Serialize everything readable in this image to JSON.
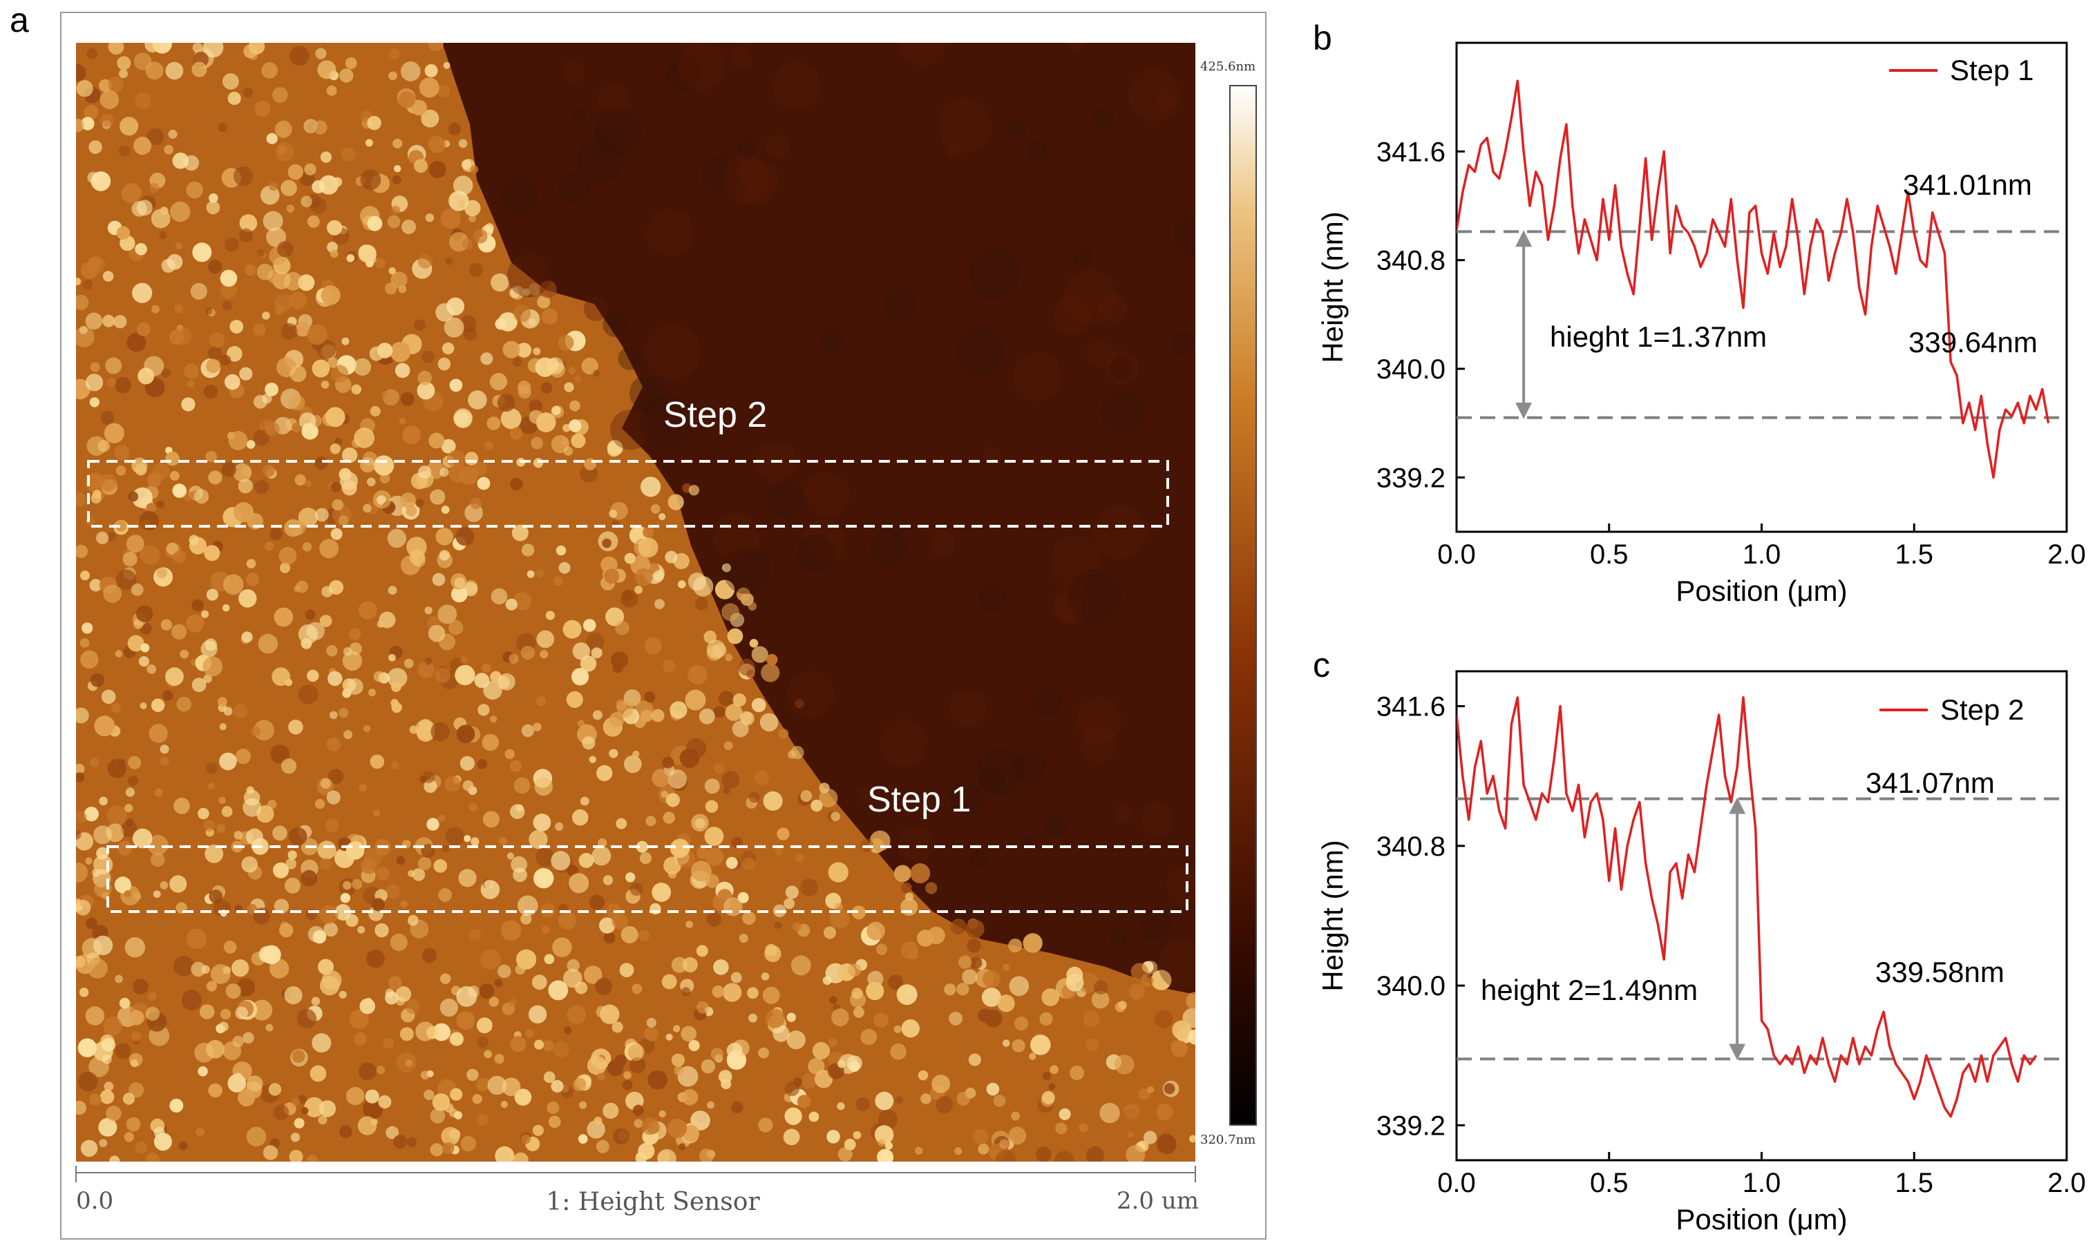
{
  "panels": {
    "a": {
      "label": "a",
      "colorbar": {
        "max_label": "425.6nm",
        "min_label": "320.7nm"
      },
      "scale": {
        "start": "0.0",
        "end": "2.0 um",
        "channel": "1:  Height Sensor"
      },
      "annotations": {
        "step2": "Step 2",
        "step1": "Step 1"
      }
    },
    "b": {
      "label": "b"
    },
    "c": {
      "label": "c"
    }
  },
  "colors": {
    "line": "#e02020",
    "dashed": "#808080",
    "arrow": "#8c8c8c",
    "afm_dark": "#3a0c00",
    "afm_bright": "#fff4d6"
  },
  "chart_data": [
    {
      "id": "b",
      "type": "line",
      "xlabel": "Position (μm)",
      "ylabel": "Height (nm)",
      "xlim": [
        0,
        2.0
      ],
      "ylim": [
        338.8,
        342.4
      ],
      "xticks": [
        "0.0",
        "0.5",
        "1.0",
        "1.5",
        "2.0"
      ],
      "yticks": [
        "339.2",
        "340.0",
        "340.8",
        "341.6"
      ],
      "legend": "Step 1",
      "legend_position": "top-right",
      "reference_lines": [
        341.01,
        339.64
      ],
      "annotations": {
        "upper": "341.01nm",
        "lower": "339.64nm",
        "step": "hieght 1=1.37nm"
      },
      "series": [
        {
          "name": "Step 1",
          "x": [
            0.0,
            0.02,
            0.04,
            0.06,
            0.08,
            0.1,
            0.12,
            0.14,
            0.16,
            0.18,
            0.2,
            0.22,
            0.24,
            0.26,
            0.28,
            0.3,
            0.32,
            0.34,
            0.36,
            0.38,
            0.4,
            0.42,
            0.44,
            0.46,
            0.48,
            0.5,
            0.52,
            0.54,
            0.56,
            0.58,
            0.6,
            0.62,
            0.64,
            0.66,
            0.68,
            0.7,
            0.72,
            0.74,
            0.76,
            0.78,
            0.8,
            0.82,
            0.84,
            0.86,
            0.88,
            0.9,
            0.92,
            0.94,
            0.96,
            0.98,
            1.0,
            1.02,
            1.04,
            1.06,
            1.08,
            1.1,
            1.12,
            1.14,
            1.16,
            1.18,
            1.2,
            1.22,
            1.24,
            1.26,
            1.28,
            1.3,
            1.32,
            1.34,
            1.36,
            1.38,
            1.4,
            1.42,
            1.44,
            1.46,
            1.48,
            1.5,
            1.52,
            1.54,
            1.56,
            1.58,
            1.6,
            1.62,
            1.64,
            1.66,
            1.68,
            1.7,
            1.72,
            1.74,
            1.76,
            1.78,
            1.8,
            1.82,
            1.84,
            1.86,
            1.88,
            1.9,
            1.92,
            1.94
          ],
          "y": [
            341.02,
            341.3,
            341.5,
            341.45,
            341.65,
            341.7,
            341.45,
            341.4,
            341.6,
            341.85,
            342.12,
            341.6,
            341.2,
            341.45,
            341.35,
            340.95,
            341.2,
            341.55,
            341.8,
            341.2,
            340.85,
            341.1,
            340.95,
            340.8,
            341.25,
            340.95,
            341.35,
            340.9,
            340.7,
            340.55,
            341.05,
            341.55,
            340.95,
            341.3,
            341.6,
            340.85,
            341.2,
            341.05,
            341.0,
            340.9,
            340.75,
            340.85,
            341.1,
            341.0,
            340.9,
            341.25,
            340.8,
            340.45,
            341.15,
            341.2,
            340.85,
            340.7,
            341.0,
            340.75,
            340.9,
            341.25,
            340.95,
            340.55,
            340.9,
            341.1,
            341.0,
            340.65,
            340.85,
            341.0,
            341.25,
            341.0,
            340.6,
            340.4,
            340.9,
            341.2,
            341.05,
            340.9,
            340.7,
            341.0,
            341.3,
            341.0,
            340.8,
            340.75,
            341.15,
            341.0,
            340.85,
            340.05,
            339.95,
            339.6,
            339.75,
            339.55,
            339.8,
            339.45,
            339.2,
            339.55,
            339.7,
            339.65,
            339.75,
            339.6,
            339.8,
            339.7,
            339.85,
            339.6
          ]
        }
      ]
    },
    {
      "id": "c",
      "type": "line",
      "xlabel": "Position (μm)",
      "ylabel": "Height (nm)",
      "xlim": [
        0,
        2.0
      ],
      "ylim": [
        339.0,
        341.8
      ],
      "xticks": [
        "0.0",
        "0.5",
        "1.0",
        "1.5",
        "2.0"
      ],
      "yticks": [
        "339.2",
        "340.0",
        "340.8",
        "341.6"
      ],
      "legend": "Step 2",
      "legend_position": "top-right",
      "reference_lines": [
        341.07,
        339.58
      ],
      "annotations": {
        "upper": "341.07nm",
        "lower": "339.58nm",
        "step": "height 2=1.49nm"
      },
      "series": [
        {
          "name": "Step 2",
          "x": [
            0.0,
            0.02,
            0.04,
            0.06,
            0.08,
            0.1,
            0.12,
            0.14,
            0.16,
            0.18,
            0.2,
            0.22,
            0.24,
            0.26,
            0.28,
            0.3,
            0.32,
            0.34,
            0.36,
            0.38,
            0.4,
            0.42,
            0.44,
            0.46,
            0.48,
            0.5,
            0.52,
            0.54,
            0.56,
            0.58,
            0.6,
            0.62,
            0.64,
            0.66,
            0.68,
            0.7,
            0.72,
            0.74,
            0.76,
            0.78,
            0.8,
            0.82,
            0.84,
            0.86,
            0.88,
            0.9,
            0.92,
            0.94,
            0.96,
            0.98,
            1.0,
            1.02,
            1.04,
            1.06,
            1.08,
            1.1,
            1.12,
            1.14,
            1.16,
            1.18,
            1.2,
            1.22,
            1.24,
            1.26,
            1.28,
            1.3,
            1.32,
            1.34,
            1.36,
            1.38,
            1.4,
            1.42,
            1.44,
            1.46,
            1.48,
            1.5,
            1.52,
            1.54,
            1.56,
            1.58,
            1.6,
            1.62,
            1.64,
            1.66,
            1.68,
            1.7,
            1.72,
            1.74,
            1.76,
            1.78,
            1.8,
            1.82,
            1.84,
            1.86,
            1.88,
            1.9
          ],
          "y": [
            341.55,
            341.2,
            340.95,
            341.25,
            341.4,
            341.1,
            341.2,
            341.0,
            340.9,
            341.5,
            341.65,
            341.15,
            341.05,
            340.95,
            341.1,
            341.05,
            341.3,
            341.6,
            341.1,
            341.0,
            341.15,
            340.85,
            341.05,
            341.1,
            340.95,
            340.6,
            340.9,
            340.55,
            340.8,
            340.95,
            341.05,
            340.7,
            340.5,
            340.35,
            340.15,
            340.65,
            340.7,
            340.5,
            340.75,
            340.65,
            340.9,
            341.15,
            341.35,
            341.55,
            341.2,
            341.05,
            341.25,
            341.65,
            341.25,
            340.9,
            339.8,
            339.75,
            339.6,
            339.55,
            339.6,
            339.55,
            339.65,
            339.5,
            339.6,
            339.55,
            339.7,
            339.55,
            339.45,
            339.6,
            339.55,
            339.7,
            339.55,
            339.65,
            339.6,
            339.75,
            339.85,
            339.65,
            339.55,
            339.5,
            339.45,
            339.35,
            339.45,
            339.6,
            339.5,
            339.4,
            339.3,
            339.25,
            339.35,
            339.5,
            339.55,
            339.45,
            339.6,
            339.45,
            339.6,
            339.65,
            339.7,
            339.55,
            339.45,
            339.6,
            339.55,
            339.6
          ]
        }
      ]
    }
  ]
}
